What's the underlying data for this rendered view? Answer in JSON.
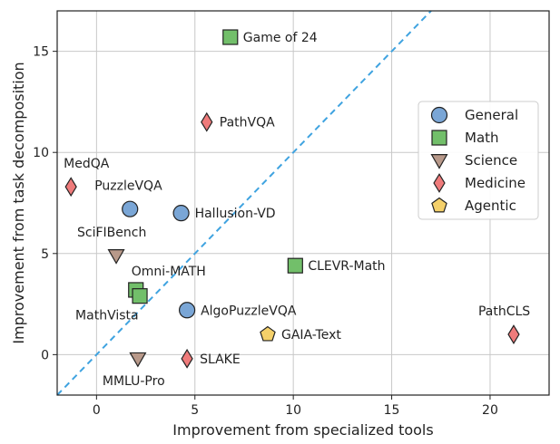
{
  "chart_data": {
    "type": "scatter",
    "xlabel": "Improvement from specialized tools",
    "ylabel": "Improvement from task decomposition",
    "xlim": [
      -2,
      23
    ],
    "ylim": [
      -2,
      17
    ],
    "xticks": [
      0,
      5,
      10,
      15,
      20
    ],
    "yticks": [
      0,
      5,
      10,
      15
    ],
    "grid": true,
    "reference_line": {
      "type": "y=x",
      "style": "dashed",
      "color": "#3fa3e0"
    },
    "legend_position": "right",
    "categories": [
      {
        "name": "General",
        "marker": "circle",
        "color": "#7aa6d6"
      },
      {
        "name": "Math",
        "marker": "square",
        "color": "#72bf6a"
      },
      {
        "name": "Science",
        "marker": "triangle-down",
        "color": "#b8998a"
      },
      {
        "name": "Medicine",
        "marker": "diamond",
        "color": "#ef7b7b"
      },
      {
        "name": "Agentic",
        "marker": "pentagon",
        "color": "#f4d06a"
      }
    ],
    "points": [
      {
        "label": "Game of 24",
        "category": "Math",
        "x": 6.8,
        "y": 15.7
      },
      {
        "label": "PathVQA",
        "category": "Medicine",
        "x": 5.6,
        "y": 11.5
      },
      {
        "label": "MedQA",
        "category": "Medicine",
        "x": -1.3,
        "y": 8.3
      },
      {
        "label": "PuzzleVQA",
        "category": "General",
        "x": 1.7,
        "y": 7.2
      },
      {
        "label": "Hallusion-VD",
        "category": "General",
        "x": 4.3,
        "y": 7.0
      },
      {
        "label": "SciFIBench",
        "category": "Science",
        "x": 1.0,
        "y": 4.9
      },
      {
        "label": "CLEVR-Math",
        "category": "Math",
        "x": 10.1,
        "y": 4.4
      },
      {
        "label": "Omni-MATH",
        "category": "Math",
        "x": 2.0,
        "y": 3.2
      },
      {
        "label": "MathVista",
        "category": "Math",
        "x": 2.2,
        "y": 2.9
      },
      {
        "label": "AlgoPuzzleVQA",
        "category": "General",
        "x": 4.6,
        "y": 2.2
      },
      {
        "label": "PathCLS",
        "category": "Medicine",
        "x": 21.2,
        "y": 1.0
      },
      {
        "label": "GAIA-Text",
        "category": "Agentic",
        "x": 8.7,
        "y": 1.0
      },
      {
        "label": "MMLU-Pro",
        "category": "Science",
        "x": 2.1,
        "y": -0.2
      },
      {
        "label": "SLAKE",
        "category": "Medicine",
        "x": 4.6,
        "y": -0.2
      }
    ]
  }
}
